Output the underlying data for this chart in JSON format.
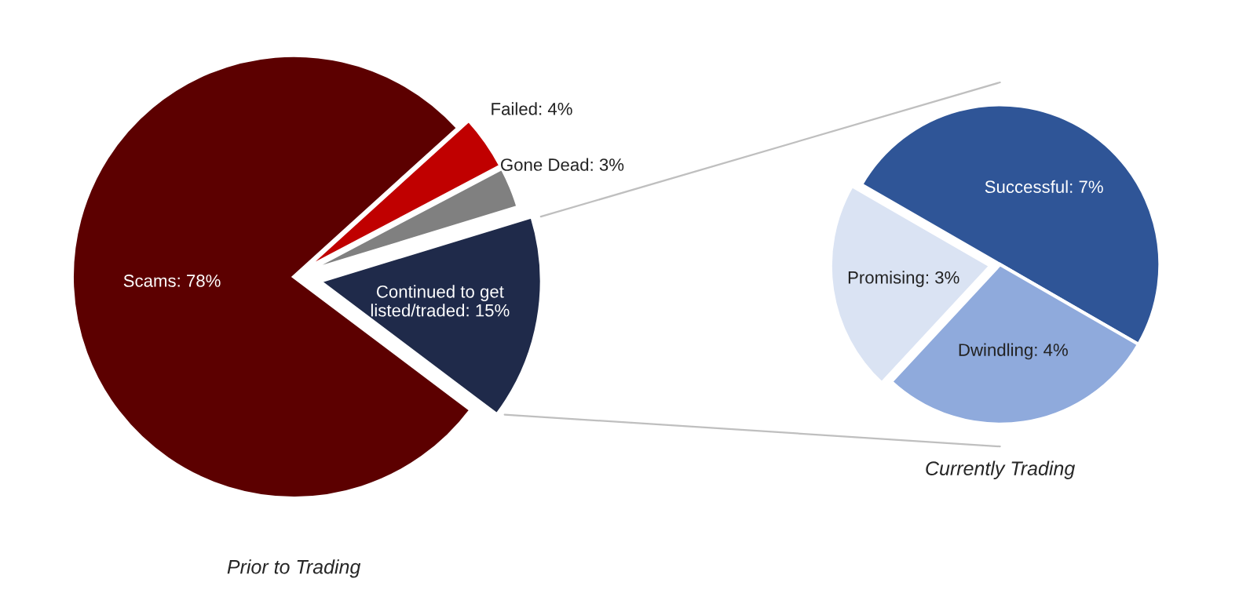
{
  "chart_data": [
    {
      "type": "pie",
      "title": "Prior to Trading",
      "categories": [
        "Scams: 78%",
        "Failed: 4%",
        "Gone Dead: 3%",
        "Continued to get listed/traded: 15%"
      ],
      "values": [
        78,
        4,
        3,
        15
      ],
      "colors": [
        "#5c0000",
        "#c00000",
        "#808080",
        "#1f2a4a"
      ]
    },
    {
      "type": "pie",
      "title": "Currently Trading",
      "categories": [
        "Successful: 7%",
        "Dwindling: 4%",
        "Promising: 3%"
      ],
      "values": [
        7,
        4,
        3
      ],
      "colors": [
        "#2f5597",
        "#8faadc",
        "#dae3f3"
      ]
    }
  ]
}
